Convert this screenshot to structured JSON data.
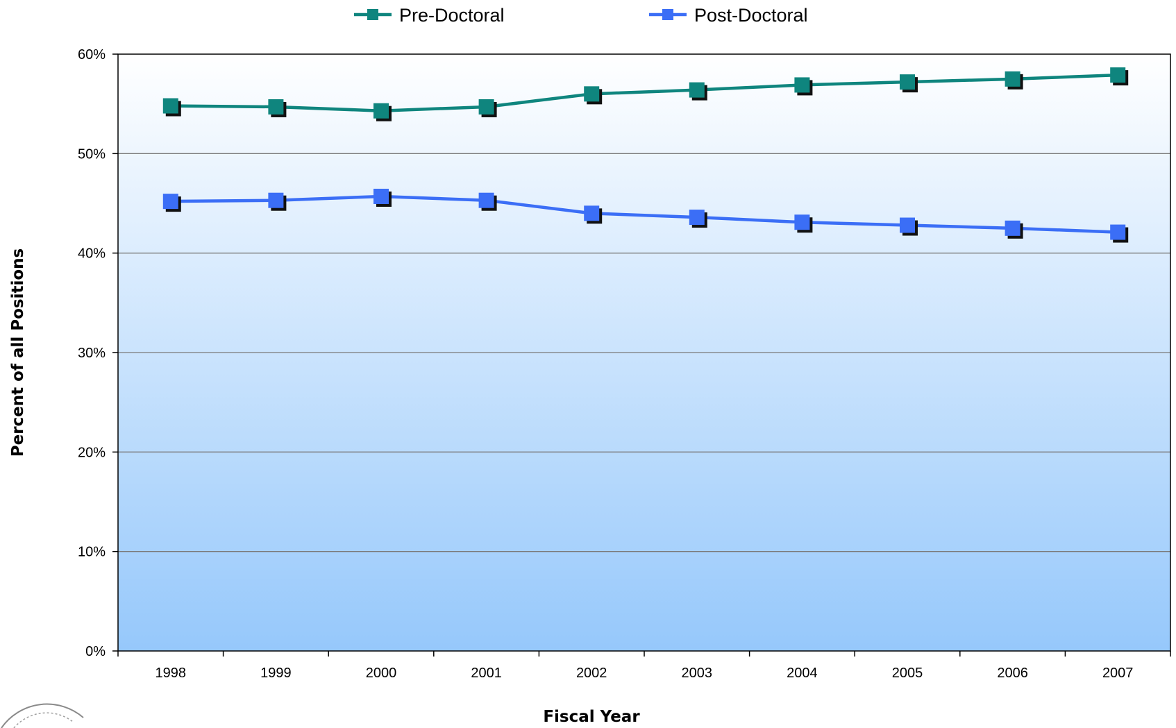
{
  "chart_data": {
    "type": "line",
    "xlabel": "Fiscal Year",
    "ylabel": "Percent of all Positions",
    "categories": [
      "1998",
      "1999",
      "2000",
      "2001",
      "2002",
      "2003",
      "2004",
      "2005",
      "2006",
      "2007"
    ],
    "ylim": [
      0,
      60
    ],
    "yticks": [
      "0%",
      "10%",
      "20%",
      "30%",
      "40%",
      "50%",
      "60%"
    ],
    "grid": true,
    "legend_position": "top",
    "series": [
      {
        "name": "Pre-Doctoral",
        "color": "#0f857e",
        "values": [
          54.8,
          54.7,
          54.3,
          54.7,
          56.0,
          56.4,
          56.9,
          57.2,
          57.5,
          57.9
        ]
      },
      {
        "name": "Post-Doctoral",
        "color": "#3b6ef6",
        "values": [
          45.2,
          45.3,
          45.7,
          45.3,
          44.0,
          43.6,
          43.1,
          42.8,
          42.5,
          42.1
        ]
      }
    ]
  }
}
